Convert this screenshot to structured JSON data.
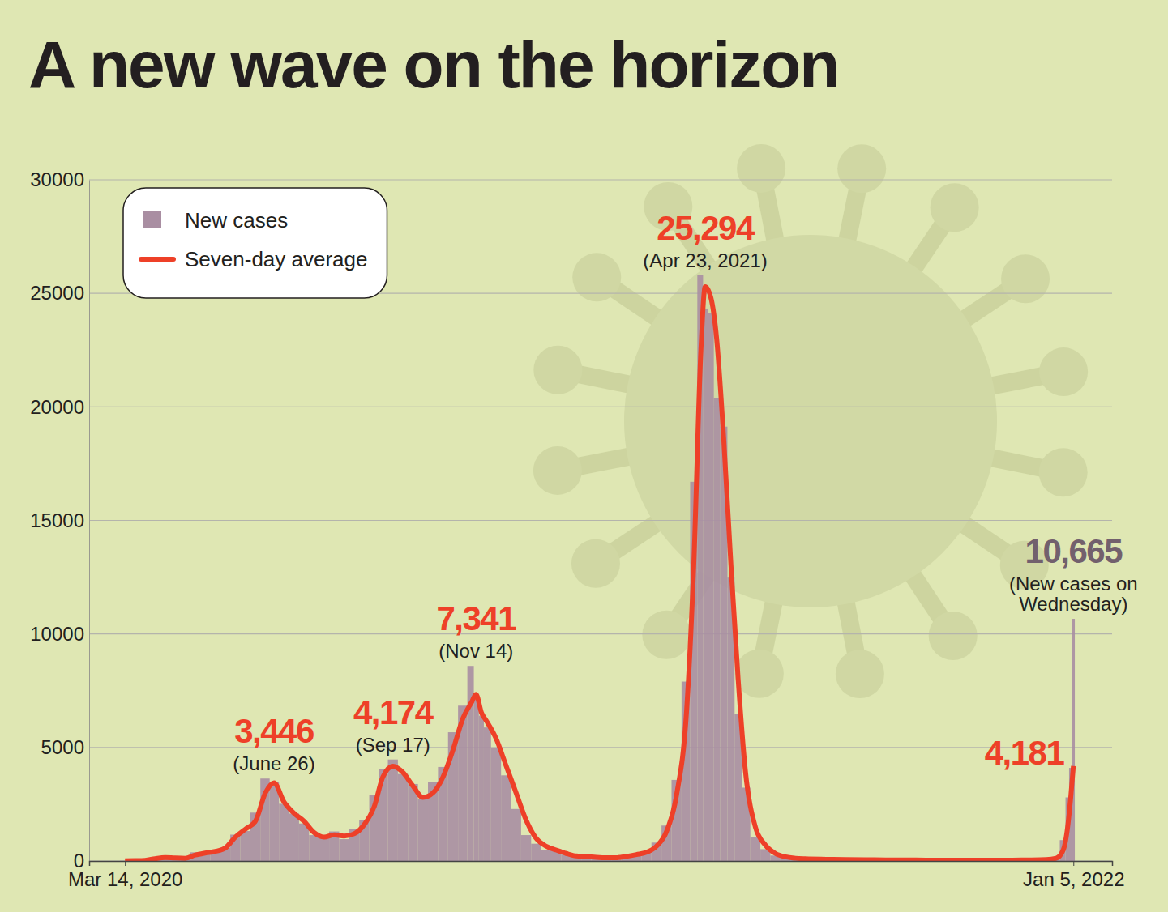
{
  "chart_data": {
    "type": "bar",
    "title": "A new wave on the horizon",
    "x": [
      "2020-03-14",
      "2020-03-21",
      "2020-03-28",
      "2020-04-04",
      "2020-04-11",
      "2020-04-18",
      "2020-04-25",
      "2020-05-02",
      "2020-05-09",
      "2020-05-16",
      "2020-05-23",
      "2020-05-30",
      "2020-06-06",
      "2020-06-13",
      "2020-06-20",
      "2020-06-26",
      "2020-07-03",
      "2020-07-10",
      "2020-07-17",
      "2020-07-24",
      "2020-07-31",
      "2020-08-07",
      "2020-08-14",
      "2020-08-21",
      "2020-08-28",
      "2020-09-04",
      "2020-09-10",
      "2020-09-17",
      "2020-09-24",
      "2020-10-01",
      "2020-10-08",
      "2020-10-15",
      "2020-10-22",
      "2020-10-29",
      "2020-11-05",
      "2020-11-11",
      "2020-11-14",
      "2020-11-18",
      "2020-11-21",
      "2020-11-28",
      "2020-12-05",
      "2020-12-12",
      "2020-12-19",
      "2020-12-26",
      "2021-01-02",
      "2021-01-09",
      "2021-01-16",
      "2021-01-23",
      "2021-01-30",
      "2021-02-06",
      "2021-02-13",
      "2021-02-20",
      "2021-02-27",
      "2021-03-06",
      "2021-03-13",
      "2021-03-20",
      "2021-03-27",
      "2021-04-03",
      "2021-04-10",
      "2021-04-15",
      "2021-04-20",
      "2021-04-23",
      "2021-04-27",
      "2021-05-01",
      "2021-05-06",
      "2021-05-11",
      "2021-05-16",
      "2021-05-21",
      "2021-05-28",
      "2021-06-04",
      "2021-06-11",
      "2021-06-18",
      "2021-06-25",
      "2021-07-02",
      "2021-07-16",
      "2021-07-30",
      "2021-08-13",
      "2021-08-27",
      "2021-09-10",
      "2021-09-24",
      "2021-10-08",
      "2021-10-22",
      "2021-11-05",
      "2021-11-19",
      "2021-12-03",
      "2021-12-17",
      "2021-12-24",
      "2021-12-29",
      "2022-01-01",
      "2022-01-03",
      "2022-01-05"
    ],
    "series": [
      {
        "name": "New cases",
        "type": "bar",
        "color": "#a98ea2",
        "values": [
          7,
          20,
          40,
          90,
          160,
          110,
          120,
          380,
          340,
          440,
          590,
          1160,
          1320,
          2130,
          3630,
          3460,
          2520,
          2090,
          1650,
          1140,
          1090,
          1300,
          960,
          1410,
          1810,
          2910,
          4040,
          4470,
          3830,
          3390,
          2740,
          3480,
          4140,
          5670,
          6840,
          8590,
          7340,
          6400,
          5880,
          4990,
          3770,
          2290,
          1140,
          760,
          490,
          520,
          280,
          190,
          210,
          150,
          130,
          150,
          250,
          320,
          420,
          810,
          1560,
          3570,
          7900,
          16700,
          25800,
          24330,
          24150,
          20400,
          19130,
          12480,
          6460,
          3230,
          1070,
          520,
          240,
          160,
          110,
          90,
          70,
          60,
          50,
          40,
          45,
          40,
          35,
          40,
          40,
          30,
          50,
          70,
          180,
          920,
          2800,
          4100,
          10665
        ]
      },
      {
        "name": "Seven-day average",
        "type": "line",
        "color": "#ee4028",
        "values": [
          10,
          15,
          30,
          100,
          150,
          130,
          120,
          260,
          350,
          420,
          570,
          1050,
          1400,
          1750,
          3000,
          3446,
          2600,
          2100,
          1750,
          1250,
          1050,
          1150,
          1100,
          1200,
          1600,
          2400,
          3700,
          4174,
          3900,
          3300,
          2800,
          3000,
          3700,
          4900,
          6300,
          7000,
          7341,
          6500,
          6200,
          5400,
          4200,
          3000,
          1800,
          1000,
          650,
          480,
          330,
          220,
          200,
          160,
          140,
          145,
          200,
          280,
          380,
          650,
          1300,
          2900,
          6600,
          13000,
          22500,
          25294,
          24800,
          23000,
          18500,
          13000,
          8000,
          4000,
          1500,
          700,
          330,
          180,
          120,
          95,
          75,
          65,
          55,
          45,
          42,
          40,
          38,
          36,
          38,
          35,
          45,
          60,
          120,
          500,
          1500,
          2700,
          4181
        ]
      }
    ],
    "xlim": [
      "2020-02-18",
      "2022-02-01"
    ],
    "xticks": [
      {
        "value": "2020-03-14",
        "label": "Mar 14, 2020"
      },
      {
        "value": "2022-01-05",
        "label": "Jan 5, 2022"
      }
    ],
    "ylim": [
      0,
      30000
    ],
    "yticks": [
      0,
      5000,
      10000,
      15000,
      20000,
      25000,
      30000
    ],
    "grid": true,
    "legend": "top-left",
    "annotations": [
      {
        "x": "2020-06-26",
        "y": 3446,
        "label": "3,446",
        "note": "(June 26)",
        "series": "Seven-day average"
      },
      {
        "x": "2020-09-17",
        "y": 4174,
        "label": "4,174",
        "note": "(Sep 17)",
        "series": "Seven-day average"
      },
      {
        "x": "2020-11-14",
        "y": 7341,
        "label": "7,341",
        "note": "(Nov 14)",
        "series": "Seven-day average"
      },
      {
        "x": "2021-04-23",
        "y": 25294,
        "label": "25,294",
        "note": "(Apr 23, 2021)",
        "series": "Seven-day average"
      },
      {
        "x": "2022-01-05",
        "y": 10665,
        "label": "10,665",
        "note": "(New cases on Wednesday)",
        "series": "New cases"
      },
      {
        "x": "2022-01-05",
        "y": 4181,
        "label": "4,181",
        "series": "Seven-day average"
      }
    ]
  }
}
